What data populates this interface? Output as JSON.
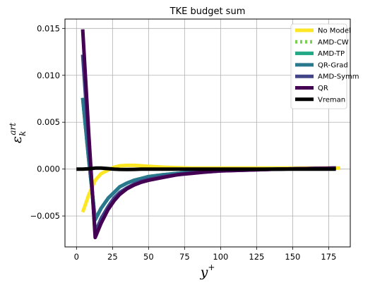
{
  "chart_data": {
    "type": "line",
    "title": "TKE budget sum",
    "xlabel": {
      "main": "y",
      "sup": "+"
    },
    "ylabel": {
      "main": "ε",
      "sub": "k",
      "sup": "art"
    },
    "xlim": [
      -8,
      190
    ],
    "ylim": [
      -0.0083,
      0.016
    ],
    "xticks": [
      0,
      25,
      50,
      75,
      100,
      125,
      150,
      175
    ],
    "xtick_labels": [
      "0",
      "25",
      "50",
      "75",
      "100",
      "125",
      "150",
      "175"
    ],
    "yticks": [
      -0.005,
      0.0,
      0.005,
      0.01,
      0.015
    ],
    "ytick_labels": [
      "−0.005",
      "0.000",
      "0.005",
      "0.010",
      "0.015"
    ],
    "grid": true,
    "legend_position": "top-right",
    "series": [
      {
        "name": "No Model",
        "color": "#fde725",
        "dash": "solid",
        "x": [
          4.3,
          8.6,
          13,
          17,
          22,
          26,
          30,
          35,
          40,
          45,
          50,
          60,
          70,
          80,
          90,
          100,
          120,
          140,
          160,
          183
        ],
        "y": [
          -0.0046,
          -0.0027,
          -0.0012,
          -0.0005,
          -0.0001,
          0.0002,
          0.00035,
          0.0004,
          0.0004,
          0.00035,
          0.0003,
          0.0002,
          0.00015,
          0.0001,
          0.0001,
          0.0001,
          0.0001,
          0.0001,
          0.0001,
          0.0001
        ]
      },
      {
        "name": "AMD-CW",
        "color": "#7ad151",
        "dash": "dotted",
        "x": [
          4.3,
          8.6,
          13,
          17,
          22,
          26,
          30,
          35,
          40,
          45,
          50,
          60,
          70,
          80,
          90,
          100,
          120,
          140,
          160,
          180
        ],
        "y": [
          0.0076,
          0.0008,
          -0.0054,
          -0.0042,
          -0.0031,
          -0.0025,
          -0.0019,
          -0.0015,
          -0.0012,
          -0.001,
          -0.0008,
          -0.0006,
          -0.00045,
          -0.0003,
          -0.0002,
          -0.00015,
          -5e-05,
          0.0,
          5e-05,
          0.0001
        ]
      },
      {
        "name": "AMD-TP",
        "color": "#22a884",
        "dash": "solid",
        "x": [
          4.3,
          8.6,
          13,
          17,
          22,
          26,
          30,
          35,
          40,
          45,
          50,
          60,
          70,
          80,
          90,
          100,
          120,
          140,
          160,
          180
        ],
        "y": [
          0.0076,
          0.0008,
          -0.0054,
          -0.0042,
          -0.0031,
          -0.0025,
          -0.0019,
          -0.0015,
          -0.0012,
          -0.001,
          -0.0008,
          -0.0006,
          -0.00045,
          -0.0003,
          -0.0002,
          -0.00015,
          -5e-05,
          0.0,
          5e-05,
          0.0001
        ]
      },
      {
        "name": "QR-Grad",
        "color": "#2a788e",
        "dash": "solid",
        "x": [
          4.3,
          8.6,
          13,
          17,
          22,
          26,
          30,
          35,
          40,
          45,
          50,
          60,
          70,
          80,
          90,
          100,
          120,
          140,
          160,
          180
        ],
        "y": [
          0.0076,
          0.0008,
          -0.0054,
          -0.0042,
          -0.0031,
          -0.0025,
          -0.0019,
          -0.0015,
          -0.0012,
          -0.001,
          -0.0008,
          -0.0006,
          -0.00045,
          -0.0003,
          -0.0002,
          -0.00015,
          -5e-05,
          0.0,
          5e-05,
          0.0001
        ]
      },
      {
        "name": "AMD-Symm",
        "color": "#414487",
        "dash": "solid",
        "x": [
          4.3,
          8.6,
          13,
          17,
          22,
          26,
          30,
          35,
          40,
          45,
          50,
          60,
          70,
          80,
          90,
          100,
          120,
          140,
          160,
          180
        ],
        "y": [
          0.0122,
          0.0025,
          -0.0068,
          -0.0053,
          -0.004,
          -0.0031,
          -0.0025,
          -0.002,
          -0.0016,
          -0.0013,
          -0.0011,
          -0.0008,
          -0.0006,
          -0.0004,
          -0.0003,
          -0.0002,
          -0.0001,
          0.0,
          5e-05,
          0.0001
        ]
      },
      {
        "name": "QR",
        "color": "#440154",
        "dash": "solid",
        "x": [
          4.3,
          8.6,
          13,
          17,
          22,
          26,
          30,
          35,
          40,
          45,
          50,
          60,
          70,
          80,
          90,
          100,
          120,
          140,
          160,
          180
        ],
        "y": [
          0.0149,
          0.0035,
          -0.0073,
          -0.0058,
          -0.0043,
          -0.0034,
          -0.0027,
          -0.0021,
          -0.0017,
          -0.0014,
          -0.0012,
          -0.0009,
          -0.0006,
          -0.00045,
          -0.0003,
          -0.0002,
          -0.0001,
          0.0,
          5e-05,
          0.0001
        ]
      },
      {
        "name": "Vreman",
        "color": "#000000",
        "dash": "solid",
        "x": [
          0,
          4.3,
          8.6,
          13,
          17,
          22,
          26,
          30,
          35,
          40,
          45,
          50,
          60,
          70,
          80,
          90,
          100,
          120,
          140,
          160,
          180
        ],
        "y": [
          0.0,
          0.0,
          3e-05,
          0.0001,
          0.0001,
          5e-05,
          0.0,
          -3e-05,
          -5e-05,
          -3e-05,
          0.0,
          0.0,
          0.0,
          0.0,
          0.0,
          0.0,
          0.0,
          0.0,
          0.0,
          0.0,
          0.0
        ]
      }
    ]
  }
}
